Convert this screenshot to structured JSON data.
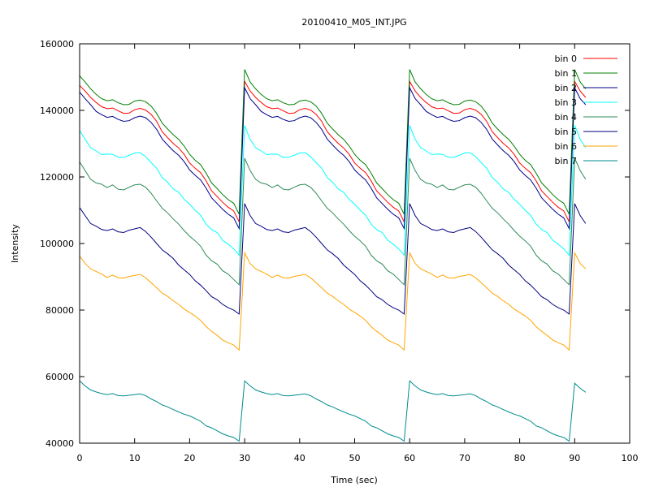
{
  "chart_data": {
    "type": "line",
    "title": "20100410_M05_INT.JPG",
    "xlabel": "Time (sec)",
    "ylabel": "Intensity",
    "xlim": [
      0,
      100
    ],
    "ylim": [
      40000,
      160000
    ],
    "xticks": [
      0,
      10,
      20,
      30,
      40,
      50,
      60,
      70,
      80,
      90,
      100
    ],
    "yticks": [
      40000,
      60000,
      80000,
      100000,
      120000,
      140000,
      160000
    ],
    "grid": false,
    "legend_position": "top-right",
    "x": [
      0,
      1,
      2,
      3,
      4,
      5,
      6,
      7,
      8,
      9,
      10,
      11,
      12,
      13,
      14,
      15,
      16,
      17,
      18,
      19,
      20,
      21,
      22,
      23,
      24,
      25,
      26,
      27,
      28,
      29,
      30,
      31,
      32,
      33,
      34,
      35,
      36,
      37,
      38,
      39,
      40,
      41,
      42,
      43,
      44,
      45,
      46,
      47,
      48,
      49,
      50,
      51,
      52,
      53,
      54,
      55,
      56,
      57,
      58,
      59,
      60,
      61,
      62,
      63,
      64,
      65,
      66,
      67,
      68,
      69,
      70,
      71,
      72,
      73,
      74,
      75,
      76,
      77,
      78,
      79,
      80,
      81,
      82,
      83,
      84,
      85,
      86,
      87,
      88,
      89,
      90,
      91,
      92
    ],
    "series": [
      {
        "name": "bin 0",
        "color": "#ff0000",
        "values": [
          147500,
          145800,
          143900,
          142400,
          141100,
          140500,
          140700,
          139900,
          139100,
          139200,
          140200,
          140600,
          140100,
          138800,
          136700,
          133600,
          131800,
          130100,
          128700,
          126800,
          124200,
          122600,
          121300,
          118800,
          115800,
          114100,
          112400,
          110900,
          109800,
          106500,
          148700,
          145800,
          143900,
          142400,
          141100,
          140500,
          140700,
          139900,
          139100,
          139200,
          140200,
          140600,
          140100,
          138800,
          136700,
          133600,
          131800,
          130100,
          128700,
          126800,
          124200,
          122600,
          121300,
          118800,
          115800,
          114100,
          112400,
          110900,
          109800,
          106500,
          148700,
          145800,
          143900,
          142400,
          141100,
          140500,
          140700,
          139900,
          139100,
          139200,
          140200,
          140600,
          140100,
          138800,
          136700,
          133600,
          131800,
          130100,
          128700,
          126800,
          124200,
          122600,
          121300,
          118800,
          115800,
          114100,
          112400,
          110900,
          109800,
          106500,
          148700,
          145800,
          143900
        ]
      },
      {
        "name": "bin 1",
        "color": "#008000",
        "values": [
          150400,
          148500,
          146500,
          144800,
          143500,
          142900,
          143200,
          142300,
          141700,
          141800,
          142800,
          143100,
          142600,
          141300,
          139100,
          136200,
          134400,
          132700,
          131300,
          129300,
          126800,
          125000,
          123700,
          121100,
          118200,
          116500,
          114700,
          113200,
          112100,
          108800,
          152300,
          148500,
          146500,
          144800,
          143500,
          142900,
          143200,
          142300,
          141700,
          141800,
          142800,
          143100,
          142600,
          141300,
          139100,
          136200,
          134400,
          132700,
          131300,
          129300,
          126800,
          125000,
          123700,
          121100,
          118200,
          116500,
          114700,
          113200,
          112100,
          108800,
          152300,
          148500,
          146500,
          144800,
          143500,
          142900,
          143200,
          142300,
          141700,
          141800,
          142800,
          143100,
          142600,
          141300,
          139100,
          136200,
          134400,
          132700,
          131300,
          129300,
          126800,
          125000,
          123700,
          121100,
          118200,
          116500,
          114700,
          113200,
          112100,
          108800,
          152300,
          148500,
          146500
        ]
      },
      {
        "name": "bin 2",
        "color": "#00008b",
        "values": [
          145500,
          143500,
          141700,
          139700,
          138700,
          137900,
          138200,
          137300,
          136700,
          136900,
          137800,
          138300,
          137800,
          136400,
          134300,
          131400,
          129600,
          127900,
          126500,
          124600,
          122100,
          120500,
          119100,
          116600,
          113700,
          112000,
          110300,
          108800,
          107700,
          104500,
          146800,
          143500,
          141700,
          139700,
          138700,
          137900,
          138200,
          137300,
          136700,
          136900,
          137800,
          138300,
          137800,
          136400,
          134300,
          131400,
          129600,
          127900,
          126500,
          124600,
          122100,
          120500,
          119100,
          116600,
          113700,
          112000,
          110300,
          108800,
          107700,
          104500,
          146800,
          143500,
          141700,
          139700,
          138700,
          137900,
          138200,
          137300,
          136700,
          136900,
          137800,
          138300,
          137800,
          136400,
          134300,
          131400,
          129600,
          127900,
          126500,
          124600,
          122100,
          120500,
          119100,
          116600,
          113700,
          112000,
          110300,
          108800,
          107700,
          104500,
          146800,
          143500,
          141700
        ]
      },
      {
        "name": "bin 3",
        "color": "#00ffff",
        "values": [
          134000,
          131300,
          128800,
          127800,
          126700,
          126900,
          126800,
          125900,
          125900,
          126500,
          127200,
          127300,
          126100,
          124300,
          122600,
          119800,
          118400,
          116400,
          115400,
          113300,
          111800,
          110000,
          108500,
          105800,
          104200,
          103300,
          101000,
          99800,
          98400,
          96500,
          135500,
          131300,
          128800,
          127800,
          126700,
          126900,
          126800,
          125900,
          125900,
          126500,
          127200,
          127300,
          126100,
          124300,
          122600,
          119800,
          118400,
          116400,
          115400,
          113300,
          111800,
          110000,
          108500,
          105800,
          104200,
          103300,
          101000,
          99800,
          98400,
          96500,
          135500,
          131300,
          128800,
          127800,
          126700,
          126900,
          126800,
          125900,
          125900,
          126500,
          127200,
          127300,
          126100,
          124300,
          122600,
          119800,
          118400,
          116400,
          115400,
          113300,
          111800,
          110000,
          108500,
          105800,
          104200,
          103300,
          101000,
          99800,
          98400,
          96500,
          135500,
          131300,
          128800
        ]
      },
      {
        "name": "bin 4",
        "color": "#2e8b57",
        "values": [
          124500,
          121900,
          119300,
          118200,
          117800,
          116800,
          117600,
          116300,
          116100,
          116900,
          117600,
          117800,
          116900,
          115100,
          112800,
          110600,
          109200,
          107400,
          105800,
          103900,
          102200,
          100800,
          99200,
          96500,
          94800,
          93800,
          91800,
          90800,
          89200,
          87600,
          125600,
          121900,
          119300,
          118200,
          117800,
          116800,
          117600,
          116300,
          116100,
          116900,
          117600,
          117800,
          116900,
          115100,
          112800,
          110600,
          109200,
          107400,
          105800,
          103900,
          102200,
          100800,
          99200,
          96500,
          94800,
          93800,
          91800,
          90800,
          89200,
          87600,
          125600,
          121900,
          119300,
          118200,
          117800,
          116800,
          117600,
          116300,
          116100,
          116900,
          117600,
          117800,
          116900,
          115100,
          112800,
          110600,
          109200,
          107400,
          105800,
          103900,
          102200,
          100800,
          99200,
          96500,
          94800,
          93800,
          91800,
          90800,
          89200,
          87600,
          125600,
          121900,
          119300
        ]
      },
      {
        "name": "bin 5",
        "color": "#000080",
        "values": [
          110800,
          108400,
          106000,
          105200,
          104200,
          103900,
          104400,
          103500,
          103300,
          104000,
          104400,
          104800,
          103600,
          101900,
          100000,
          98100,
          96900,
          95500,
          93500,
          92100,
          90700,
          88800,
          87500,
          85800,
          84000,
          83100,
          81700,
          80700,
          80000,
          78800,
          112000,
          108400,
          106000,
          105200,
          104200,
          103900,
          104400,
          103500,
          103300,
          104000,
          104400,
          104800,
          103600,
          101900,
          100000,
          98100,
          96900,
          95500,
          93500,
          92100,
          90700,
          88800,
          87500,
          85800,
          84000,
          83100,
          81700,
          80700,
          80000,
          78800,
          112000,
          108400,
          106000,
          105200,
          104200,
          103900,
          104400,
          103500,
          103300,
          104000,
          104400,
          104800,
          103600,
          101900,
          100000,
          98100,
          96900,
          95500,
          93500,
          92100,
          90700,
          88800,
          87500,
          85800,
          84000,
          83100,
          81700,
          80700,
          80000,
          78800,
          112000,
          108400,
          106000
        ]
      },
      {
        "name": "bin 6",
        "color": "#ffa500",
        "values": [
          96200,
          94000,
          92400,
          91600,
          90800,
          89800,
          90500,
          89700,
          89600,
          90100,
          90400,
          90700,
          89700,
          88200,
          86700,
          85100,
          84100,
          82800,
          81700,
          80300,
          79300,
          78200,
          76900,
          75000,
          73600,
          72400,
          71000,
          70200,
          69500,
          68000,
          97200,
          94000,
          92400,
          91600,
          90800,
          89800,
          90500,
          89700,
          89600,
          90100,
          90400,
          90700,
          89700,
          88200,
          86700,
          85100,
          84100,
          82800,
          81700,
          80300,
          79300,
          78200,
          76900,
          75000,
          73600,
          72400,
          71000,
          70200,
          69500,
          68000,
          97200,
          94000,
          92400,
          91600,
          90800,
          89800,
          90500,
          89700,
          89600,
          90100,
          90400,
          90700,
          89700,
          88200,
          86700,
          85100,
          84100,
          82800,
          81700,
          80300,
          79300,
          78200,
          76900,
          75000,
          73600,
          72400,
          71000,
          70200,
          69500,
          68000,
          97200,
          94000,
          92400
        ]
      },
      {
        "name": "bin 7",
        "color": "#008b8b",
        "values": [
          58700,
          57200,
          56000,
          55400,
          54900,
          54600,
          54900,
          54300,
          54200,
          54400,
          54600,
          54800,
          54300,
          53300,
          52500,
          51500,
          50900,
          50100,
          49400,
          48700,
          48200,
          47400,
          46600,
          45200,
          44600,
          43700,
          42800,
          42200,
          41700,
          40600,
          58700,
          57200,
          56000,
          55400,
          54900,
          54600,
          54900,
          54300,
          54200,
          54400,
          54600,
          54800,
          54300,
          53300,
          52500,
          51500,
          50900,
          50100,
          49400,
          48700,
          48200,
          47400,
          46600,
          45200,
          44600,
          43700,
          42800,
          42200,
          41700,
          40600,
          58700,
          57200,
          56000,
          55400,
          54900,
          54600,
          54900,
          54300,
          54200,
          54400,
          54600,
          54800,
          54300,
          53300,
          52500,
          51500,
          50900,
          50100,
          49400,
          48700,
          48200,
          47400,
          46600,
          45200,
          44600,
          43700,
          42800,
          42200,
          41700,
          40600,
          58000,
          56500,
          55300
        ]
      }
    ]
  }
}
